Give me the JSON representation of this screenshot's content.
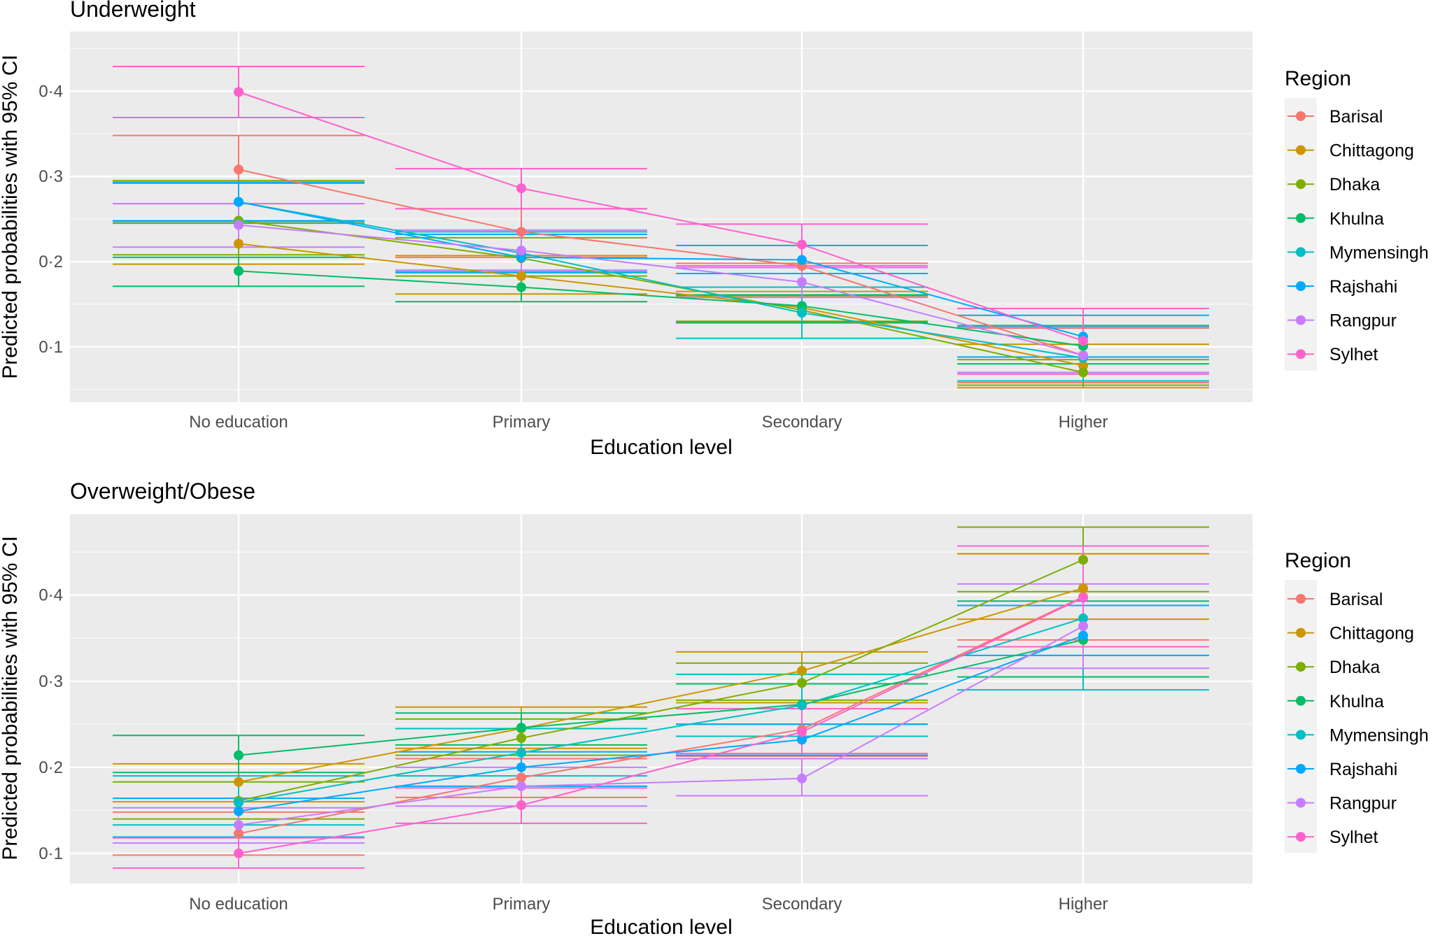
{
  "colors": {
    "panel_bg": "#ebebeb",
    "grid": "#ffffff",
    "Barisal": "#f8766d",
    "Chittagong": "#cd9600",
    "Dhaka": "#7cae00",
    "Khulna": "#00be67",
    "Mymensingh": "#00bfc4",
    "Rajshahi": "#00a9ff",
    "Rangpur": "#c77cff",
    "Sylhet": "#ff61cc"
  },
  "chart_data": [
    {
      "type": "line",
      "title": "Underweight",
      "xlabel": "Education level",
      "ylabel": "Predicted probabilities with 95% CI",
      "categories": [
        "No education",
        "Primary",
        "Secondary",
        "Higher"
      ],
      "ylim": [
        0.035,
        0.47
      ],
      "yticks": [
        0.1,
        0.2,
        0.3,
        0.4
      ],
      "ytick_labels": [
        "0·1",
        "0·2",
        "0·3",
        "0·4"
      ],
      "legend_title": "Region",
      "legend_position": "right",
      "series": [
        {
          "name": "Barisal",
          "values": [
            0.308,
            0.235,
            0.195,
            0.09
          ],
          "lower": [
            0.268,
            0.205,
            0.16,
            0.058
          ],
          "upper": [
            0.348,
            0.262,
            0.198,
            0.122
          ]
        },
        {
          "name": "Chittagong",
          "values": [
            0.221,
            0.183,
            0.146,
            0.078
          ],
          "lower": [
            0.197,
            0.162,
            0.128,
            0.052
          ],
          "upper": [
            0.247,
            0.207,
            0.165,
            0.103
          ]
        },
        {
          "name": "Dhaka",
          "values": [
            0.248,
            0.204,
            0.143,
            0.07
          ],
          "lower": [
            0.208,
            0.183,
            0.13,
            0.055
          ],
          "upper": [
            0.295,
            0.228,
            0.16,
            0.085
          ]
        },
        {
          "name": "Khulna",
          "values": [
            0.189,
            0.17,
            0.148,
            0.101
          ],
          "lower": [
            0.171,
            0.153,
            0.129,
            0.08
          ],
          "upper": [
            0.205,
            0.187,
            0.161,
            0.125
          ]
        },
        {
          "name": "Mymensingh",
          "values": [
            0.27,
            0.21,
            0.14,
            0.087
          ],
          "lower": [
            0.245,
            0.187,
            0.11,
            0.06
          ],
          "upper": [
            0.292,
            0.235,
            0.17,
            0.124
          ]
        },
        {
          "name": "Rajshahi",
          "values": [
            0.27,
            0.205,
            0.202,
            0.112
          ],
          "lower": [
            0.248,
            0.188,
            0.186,
            0.088
          ],
          "upper": [
            0.293,
            0.232,
            0.219,
            0.137
          ]
        },
        {
          "name": "Rangpur",
          "values": [
            0.243,
            0.213,
            0.176,
            0.09
          ],
          "lower": [
            0.217,
            0.19,
            0.158,
            0.07
          ],
          "upper": [
            0.268,
            0.237,
            0.193,
            0.123
          ]
        },
        {
          "name": "Sylhet",
          "values": [
            0.399,
            0.286,
            0.22,
            0.107
          ],
          "lower": [
            0.369,
            0.262,
            0.195,
            0.068
          ],
          "upper": [
            0.429,
            0.309,
            0.244,
            0.145
          ]
        }
      ]
    },
    {
      "type": "line",
      "title": "Overweight/Obese",
      "xlabel": "Education level",
      "ylabel": "Predicted probabilities with 95% CI",
      "categories": [
        "No education",
        "Primary",
        "Secondary",
        "Higher"
      ],
      "ylim": [
        0.065,
        0.494
      ],
      "yticks": [
        0.1,
        0.2,
        0.3,
        0.4
      ],
      "ytick_labels": [
        "0·1",
        "0·2",
        "0·3",
        "0·4"
      ],
      "legend_title": "Region",
      "legend_position": "right",
      "series": [
        {
          "name": "Barisal",
          "values": [
            0.123,
            0.188,
            0.244,
            0.398
          ],
          "lower": [
            0.098,
            0.165,
            0.213,
            0.348
          ],
          "upper": [
            0.148,
            0.21,
            0.275,
            0.448
          ]
        },
        {
          "name": "Chittagong",
          "values": [
            0.183,
            0.245,
            0.312,
            0.408
          ],
          "lower": [
            0.16,
            0.222,
            0.275,
            0.372
          ],
          "upper": [
            0.204,
            0.27,
            0.334,
            0.448
          ]
        },
        {
          "name": "Dhaka",
          "values": [
            0.161,
            0.234,
            0.298,
            0.441
          ],
          "lower": [
            0.14,
            0.214,
            0.278,
            0.404
          ],
          "upper": [
            0.183,
            0.256,
            0.321,
            0.479
          ]
        },
        {
          "name": "Khulna",
          "values": [
            0.214,
            0.246,
            0.273,
            0.348
          ],
          "lower": [
            0.194,
            0.226,
            0.25,
            0.305
          ],
          "upper": [
            0.237,
            0.263,
            0.297,
            0.393
          ]
        },
        {
          "name": "Mymensingh",
          "values": [
            0.159,
            0.217,
            0.272,
            0.373
          ],
          "lower": [
            0.133,
            0.19,
            0.236,
            0.29
          ],
          "upper": [
            0.19,
            0.245,
            0.308,
            0.388
          ]
        },
        {
          "name": "Rajshahi",
          "values": [
            0.149,
            0.2,
            0.232,
            0.353
          ],
          "lower": [
            0.119,
            0.178,
            0.214,
            0.33
          ],
          "upper": [
            0.164,
            0.218,
            0.25,
            0.388
          ]
        },
        {
          "name": "Rangpur",
          "values": [
            0.133,
            0.178,
            0.187,
            0.364
          ],
          "lower": [
            0.112,
            0.155,
            0.167,
            0.315
          ],
          "upper": [
            0.153,
            0.2,
            0.21,
            0.413
          ]
        },
        {
          "name": "Sylhet",
          "values": [
            0.1,
            0.156,
            0.241,
            0.397
          ],
          "lower": [
            0.083,
            0.135,
            0.216,
            0.34
          ],
          "upper": [
            0.118,
            0.176,
            0.268,
            0.457
          ]
        }
      ]
    }
  ]
}
